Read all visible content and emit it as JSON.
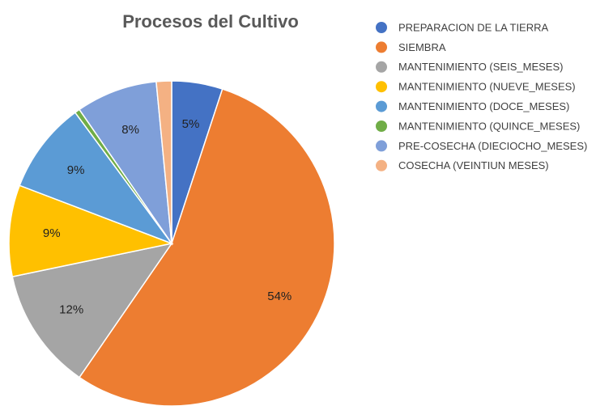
{
  "chart_data": {
    "type": "pie",
    "title": "Procesos del Cultivo",
    "categories": [
      "PREPARACION DE LA TIERRA",
      "SIEMBRA",
      "MANTENIMIENTO (SEIS_MESES)",
      "MANTENIMIENTO (NUEVE_MESES)",
      "MANTENIMIENTO (DOCE_MESES)",
      "MANTENIMIENTO (QUINCE_MESES)",
      "PRE-COSECHA (DIECIOCHO_MESES)",
      "COSECHA (VEINTIUN MESES)"
    ],
    "values": [
      5,
      54,
      12,
      9,
      9,
      0.5,
      8,
      1.5
    ],
    "value_labels": [
      "5%",
      "54%",
      "12%",
      "9%",
      "9%",
      null,
      "8%",
      null
    ],
    "colors": [
      "#4472c4",
      "#ed7d31",
      "#a5a5a5",
      "#ffc000",
      "#5b9bd5",
      "#70ad47",
      "#7f9fd9",
      "#f4b183"
    ],
    "legend": "right"
  }
}
